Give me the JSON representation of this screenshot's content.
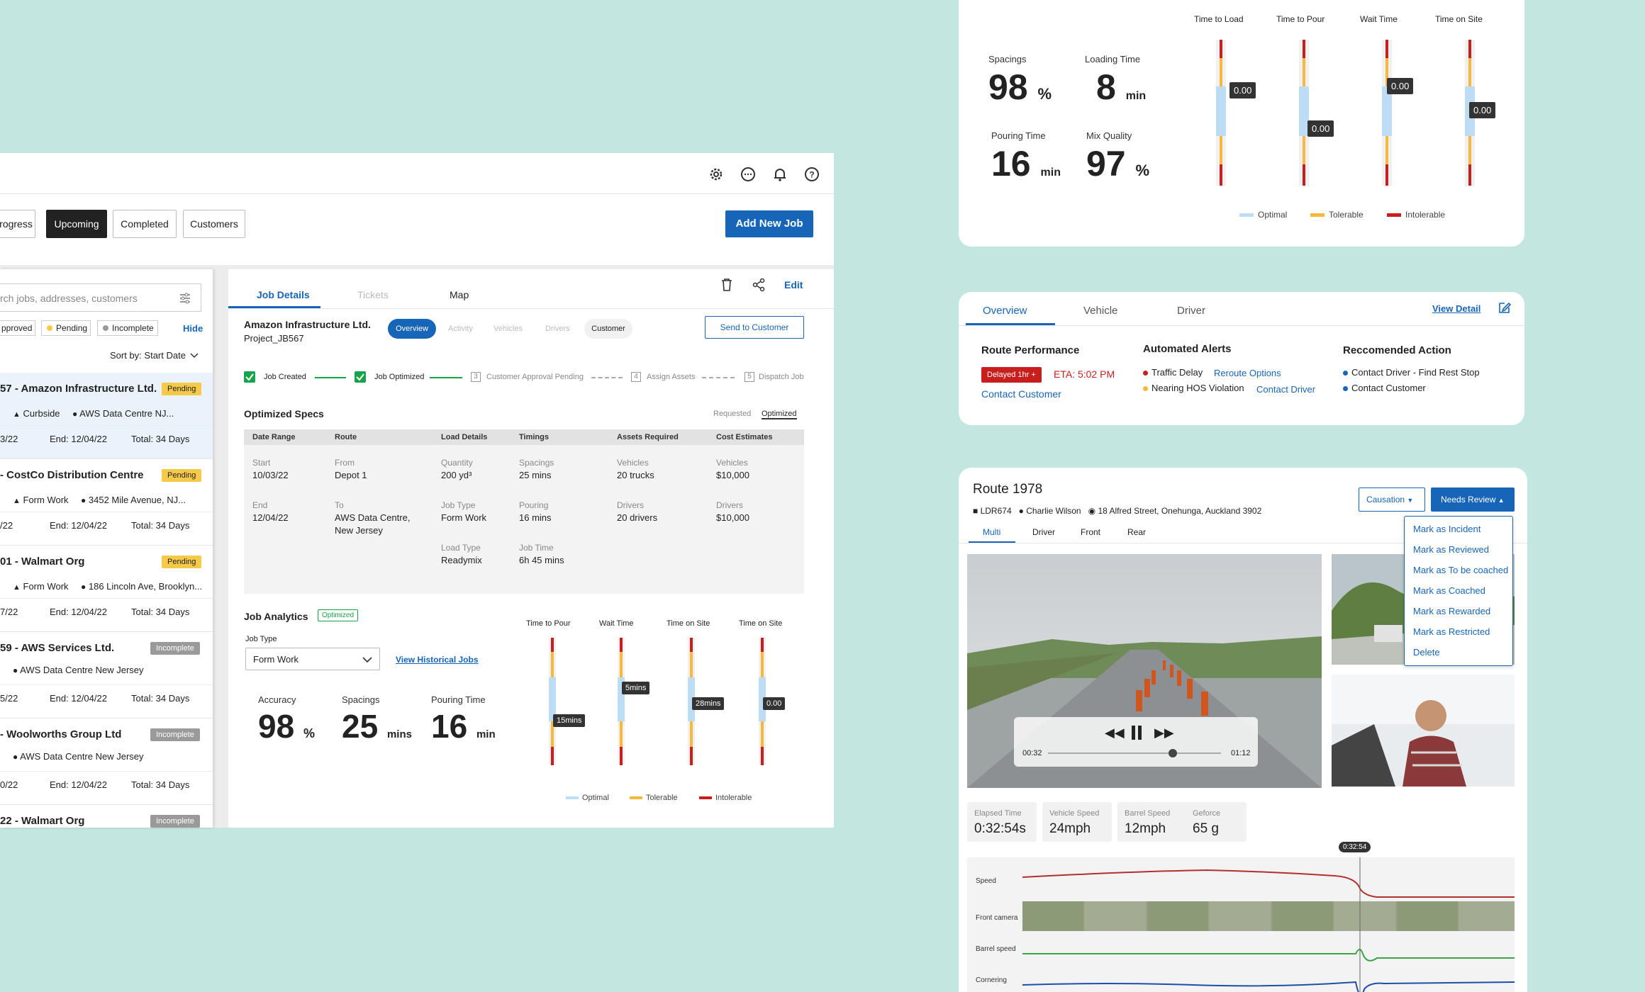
{
  "window": {
    "tabs": [
      "rogress",
      "Upcoming",
      "Completed",
      "Customers"
    ],
    "active_tab": "Upcoming",
    "add_job": "Add New Job",
    "search_placeholder": "rch jobs, addresses, customers",
    "filters": {
      "approved": "pproved",
      "pending": "Pending",
      "incomplete": "Incomplete",
      "hide": "Hide"
    },
    "sort": "Sort by: Start Date",
    "jobs": [
      {
        "title": "57 - Amazon Infrastructure Ltd.",
        "status": "Pending",
        "type": "Curbside",
        "address": "AWS Data Centre NJ...",
        "start": "3/22",
        "end": "End: 12/04/22",
        "total": "Total: 34 Days"
      },
      {
        "title": "- CostCo Distribution Centre",
        "status": "Pending",
        "type": "Form Work",
        "address": "3452 Mile Avenue, NJ...",
        "start": "/22",
        "end": "End: 12/04/22",
        "total": "Total: 34 Days"
      },
      {
        "title": "01 - Walmart Org",
        "status": "Pending",
        "type": "Form Work",
        "address": "186 Lincoln Ave, Brooklyn...",
        "start": "7/22",
        "end": "End: 12/04/22",
        "total": "Total: 34 Days"
      },
      {
        "title": "59 - AWS Services Ltd.",
        "status": "Incomplete",
        "type": "",
        "address": "AWS Data Centre New Jersey",
        "start": "5/22",
        "end": "End: 12/04/22",
        "total": "Total: 34 Days"
      },
      {
        "title": "- Woolworths Group Ltd",
        "status": "Incomplete",
        "type": "",
        "address": "AWS Data Centre New Jersey",
        "start": "0/22",
        "end": "End: 12/04/22",
        "total": "Total: 34 Days"
      },
      {
        "title": "22 - Walmart Org",
        "status": "Incomplete",
        "type": "",
        "address": "",
        "start": "",
        "end": "",
        "total": ""
      }
    ],
    "detail": {
      "tabs": [
        "Job Details",
        "Tickets",
        "Map"
      ],
      "edit": "Edit",
      "company": "Amazon Infrastructure Ltd.",
      "project": "Project_JB567",
      "pills": [
        "Overview",
        "Activity",
        "Vehicles",
        "Drivers",
        "Customer"
      ],
      "send": "Send to Customer",
      "steps": [
        "Job Created",
        "Job Optimized",
        "Customer Approval Pending",
        "Assign Assets",
        "Dispatch Job"
      ],
      "step_nums": [
        "3",
        "4",
        "5"
      ],
      "specs_title": "Optimized Specs",
      "toggle": [
        "Requested",
        "Optimized"
      ],
      "headers": [
        "Date Range",
        "Route",
        "Load Details",
        "Timings",
        "Assets Required",
        "Cost Estimates"
      ],
      "cells": {
        "start_l": "Start",
        "start_v": "10/03/22",
        "end_l": "End",
        "end_v": "12/04/22",
        "from_l": "From",
        "from_v": "Depot 1",
        "to_l": "To",
        "to_v": "AWS Data Centre, New Jersey",
        "qty_l": "Quantity",
        "qty_v": "200 yd³",
        "jt_l": "Job Type",
        "jt_v": "Form Work",
        "lt_l": "Load Type",
        "lt_v": "Readymix",
        "sp_l": "Spacings",
        "sp_v": "25 mins",
        "po_l": "Pouring",
        "po_v": "16 mins",
        "jtm_l": "Job Time",
        "jtm_v": "6h 45 mins",
        "veh_l": "Vehicles",
        "veh_v": "20 trucks",
        "drv_l": "Drivers",
        "drv_v": "20 drivers",
        "cveh_l": "Vehicles",
        "cveh_v": "$10,000",
        "cdrv_l": "Drivers",
        "cdrv_v": "$10,000"
      },
      "analytics": "Job Analytics",
      "analytics_badge": "Optimized",
      "job_type_label": "Job Type",
      "job_type": "Form Work",
      "historical": "View Historical Jobs",
      "kpis": [
        {
          "label": "Accuracy",
          "value": "98",
          "unit": "%"
        },
        {
          "label": "Spacings",
          "value": "25",
          "unit": "mins"
        },
        {
          "label": "Pouring Time",
          "value": "16",
          "unit": "min"
        }
      ],
      "gauges": [
        {
          "label": "Time to Pour",
          "tag": "15mins"
        },
        {
          "label": "Wait Time",
          "tag": "5mins"
        },
        {
          "label": "Time on Site",
          "tag": "28mins"
        },
        {
          "label": "Time on Site",
          "tag": "0.00"
        }
      ],
      "legend": [
        "Optimal",
        "Tolerable",
        "Intolerable"
      ]
    }
  },
  "top_card": {
    "kpis": [
      {
        "label": "Spacings",
        "value": "98",
        "unit": "%"
      },
      {
        "label": "Loading Time",
        "value": "8",
        "unit": "min"
      },
      {
        "label": "Pouring Time",
        "value": "16",
        "unit": "min"
      },
      {
        "label": "Mix Quality",
        "value": "97",
        "unit": "%"
      }
    ],
    "gauges": [
      {
        "label": "Time to Load",
        "tag": "0.00"
      },
      {
        "label": "Time to Pour",
        "tag": "0.00"
      },
      {
        "label": "Wait Time",
        "tag": "0.00"
      },
      {
        "label": "Time on Site",
        "tag": "0.00"
      }
    ],
    "legend": [
      "Optimal",
      "Tolerable",
      "Intolerable"
    ]
  },
  "mid_card": {
    "tabs": [
      "Overview",
      "Vehicle",
      "Driver"
    ],
    "view_detail": "View Detail",
    "route_perf": "Route Performance",
    "delayed": "Delayed 1hr +",
    "eta": "ETA: 5:02 PM",
    "contact_customer": "Contact Customer",
    "alerts_title": "Automated Alerts",
    "alert1": "Traffic Delay",
    "alert1_action": "Reroute Options",
    "alert2": "Nearing HOS Violation",
    "alert2_action": "Contact Driver",
    "rec_title": "Reccomended Action",
    "rec1": "Contact Driver - Find Rest Stop",
    "rec2": "Contact Customer"
  },
  "route_card": {
    "title": "Route 1978",
    "vehicle": "LDR674",
    "driver": "Charlie Wilson",
    "address": "18 Alfred Street, Onehunga, Auckland 3902",
    "causation": "Causation",
    "needs_review": "Needs Review",
    "tabs": [
      "Multi",
      "Driver",
      "Front",
      "Rear"
    ],
    "menu": [
      "Mark as Incident",
      "Mark as Reviewed",
      "Mark as To be coached",
      "Mark as Coached",
      "Mark as Rewarded",
      "Mark as Restricted",
      "Delete"
    ],
    "time_cur": "00:32",
    "time_total": "01:12",
    "stats": [
      {
        "label": "Elapsed Time",
        "value": "0:32:54s"
      },
      {
        "label": "Vehicle Speed",
        "value": "24mph"
      },
      {
        "label": "Barrel Speed",
        "value": "12mph"
      },
      {
        "label": "Geforce",
        "value": "65 g"
      }
    ],
    "cursor": "0:32:54",
    "tracks": [
      "Speed",
      "Front camera",
      "Barrel speed",
      "Cornering"
    ]
  }
}
